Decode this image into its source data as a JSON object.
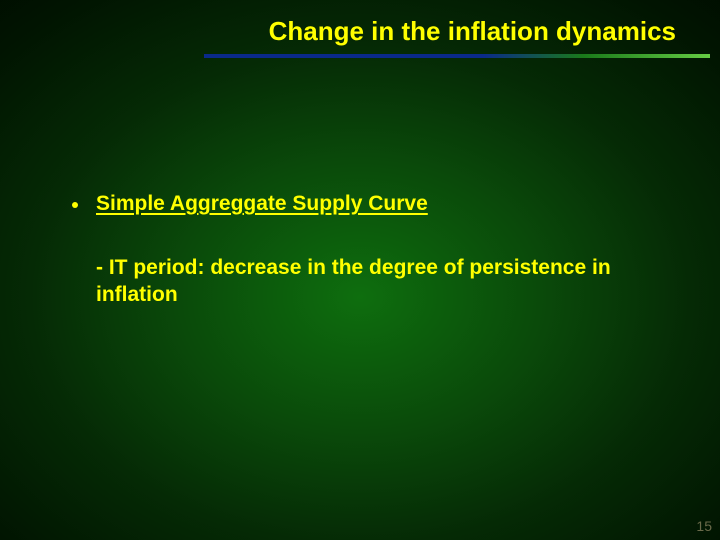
{
  "slide": {
    "title": "Change in the inflation dynamics",
    "bullet": "Simple Aggreggate Supply Curve",
    "subpoint": "- IT period: decrease in the degree of persistence in inflation",
    "page_number": "15"
  },
  "style": {
    "background_gradient": {
      "type": "radial",
      "center": "50% 55%",
      "stops": [
        "#0e6e0e",
        "#0a4a0a",
        "#052a05",
        "#011501",
        "#000800"
      ]
    },
    "title_color": "#ffff00",
    "text_color": "#ffff00",
    "title_fontsize": 26,
    "body_fontsize": 21,
    "font_weight": "bold",
    "underline_gradient": [
      "#0a2a8a",
      "#0a2a8a",
      "#1a7a1a",
      "#66cc44"
    ],
    "page_number_color": "#6a6a4a"
  }
}
